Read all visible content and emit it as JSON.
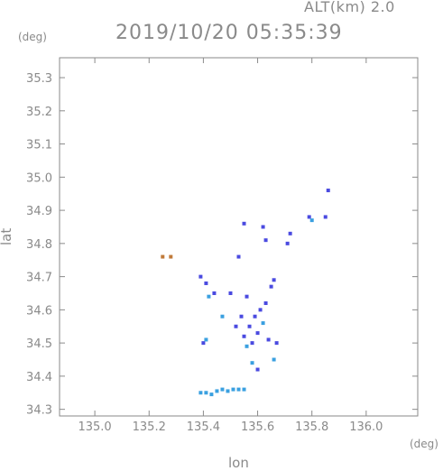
{
  "header": {
    "altitude": "ALT(km) 2.0",
    "timestamp": "2019/10/20 05:35:39"
  },
  "chart_data": {
    "type": "scatter",
    "title": "2019/10/20 05:35:39",
    "subtitle": "ALT(km) 2.0",
    "xlabel": "lon",
    "ylabel": "lat",
    "x_unit": "(deg)",
    "y_unit": "(deg)",
    "xlim": [
      134.87,
      136.19
    ],
    "ylim": [
      34.28,
      35.36
    ],
    "xticks": [
      "135.0",
      "135.2",
      "135.4",
      "135.6",
      "135.8",
      "136.0"
    ],
    "yticks": [
      "34.3",
      "34.4",
      "34.5",
      "34.6",
      "34.7",
      "34.8",
      "34.9",
      "35.0",
      "35.1",
      "35.2",
      "35.3"
    ],
    "grid": false,
    "points": [
      {
        "lon": 135.25,
        "lat": 34.76,
        "c": "#c07a3a"
      },
      {
        "lon": 135.28,
        "lat": 34.76,
        "c": "#c07a3a"
      },
      {
        "lon": 135.39,
        "lat": 34.7,
        "c": "#4a4ae0"
      },
      {
        "lon": 135.41,
        "lat": 34.68,
        "c": "#4a4ae0"
      },
      {
        "lon": 135.42,
        "lat": 34.64,
        "c": "#3aa0e0"
      },
      {
        "lon": 135.44,
        "lat": 34.65,
        "c": "#4a4ae0"
      },
      {
        "lon": 135.4,
        "lat": 34.5,
        "c": "#4a4ae0"
      },
      {
        "lon": 135.41,
        "lat": 34.51,
        "c": "#3aa0e0"
      },
      {
        "lon": 135.39,
        "lat": 34.35,
        "c": "#3aa0e0"
      },
      {
        "lon": 135.41,
        "lat": 34.35,
        "c": "#3aa0e0"
      },
      {
        "lon": 135.43,
        "lat": 34.345,
        "c": "#3aa0e0"
      },
      {
        "lon": 135.45,
        "lat": 34.355,
        "c": "#3aa0e0"
      },
      {
        "lon": 135.47,
        "lat": 34.36,
        "c": "#3aa0e0"
      },
      {
        "lon": 135.49,
        "lat": 34.355,
        "c": "#3aa0e0"
      },
      {
        "lon": 135.51,
        "lat": 34.36,
        "c": "#3aa0e0"
      },
      {
        "lon": 135.53,
        "lat": 34.36,
        "c": "#3aa0e0"
      },
      {
        "lon": 135.55,
        "lat": 34.36,
        "c": "#3aa0e0"
      },
      {
        "lon": 135.47,
        "lat": 34.58,
        "c": "#3aa0e0"
      },
      {
        "lon": 135.5,
        "lat": 34.65,
        "c": "#4a4ae0"
      },
      {
        "lon": 135.52,
        "lat": 34.55,
        "c": "#4a4ae0"
      },
      {
        "lon": 135.54,
        "lat": 34.58,
        "c": "#4a4ae0"
      },
      {
        "lon": 135.55,
        "lat": 34.52,
        "c": "#4a4ae0"
      },
      {
        "lon": 135.56,
        "lat": 34.49,
        "c": "#3aa0e0"
      },
      {
        "lon": 135.57,
        "lat": 34.55,
        "c": "#4a4ae0"
      },
      {
        "lon": 135.58,
        "lat": 34.5,
        "c": "#4a4ae0"
      },
      {
        "lon": 135.59,
        "lat": 34.58,
        "c": "#4a4ae0"
      },
      {
        "lon": 135.6,
        "lat": 34.53,
        "c": "#4a4ae0"
      },
      {
        "lon": 135.61,
        "lat": 34.6,
        "c": "#4a4ae0"
      },
      {
        "lon": 135.62,
        "lat": 34.56,
        "c": "#3aa0e0"
      },
      {
        "lon": 135.63,
        "lat": 34.62,
        "c": "#4a4ae0"
      },
      {
        "lon": 135.64,
        "lat": 34.51,
        "c": "#4a4ae0"
      },
      {
        "lon": 135.65,
        "lat": 34.67,
        "c": "#4a4ae0"
      },
      {
        "lon": 135.66,
        "lat": 34.69,
        "c": "#4a4ae0"
      },
      {
        "lon": 135.66,
        "lat": 34.45,
        "c": "#3aa0e0"
      },
      {
        "lon": 135.67,
        "lat": 34.5,
        "c": "#4a4ae0"
      },
      {
        "lon": 135.58,
        "lat": 34.44,
        "c": "#3aa0e0"
      },
      {
        "lon": 135.6,
        "lat": 34.42,
        "c": "#4a4ae0"
      },
      {
        "lon": 135.62,
        "lat": 34.85,
        "c": "#4a4ae0"
      },
      {
        "lon": 135.63,
        "lat": 34.81,
        "c": "#4a4ae0"
      },
      {
        "lon": 135.56,
        "lat": 34.64,
        "c": "#4a4ae0"
      },
      {
        "lon": 135.53,
        "lat": 34.76,
        "c": "#4a4ae0"
      },
      {
        "lon": 135.55,
        "lat": 34.86,
        "c": "#4a4ae0"
      },
      {
        "lon": 135.79,
        "lat": 34.88,
        "c": "#4a4ae0"
      },
      {
        "lon": 135.8,
        "lat": 34.87,
        "c": "#3aa0e0"
      },
      {
        "lon": 135.85,
        "lat": 34.88,
        "c": "#4a4ae0"
      },
      {
        "lon": 135.86,
        "lat": 34.96,
        "c": "#4a4ae0"
      },
      {
        "lon": 135.71,
        "lat": 34.8,
        "c": "#4a4ae0"
      },
      {
        "lon": 135.72,
        "lat": 34.83,
        "c": "#4a4ae0"
      }
    ]
  },
  "colors": {
    "axis": "#8a8a8a",
    "echo_blue": "#4a4ae0",
    "echo_cyan": "#3aa0e0",
    "echo_orange": "#c07a3a"
  }
}
